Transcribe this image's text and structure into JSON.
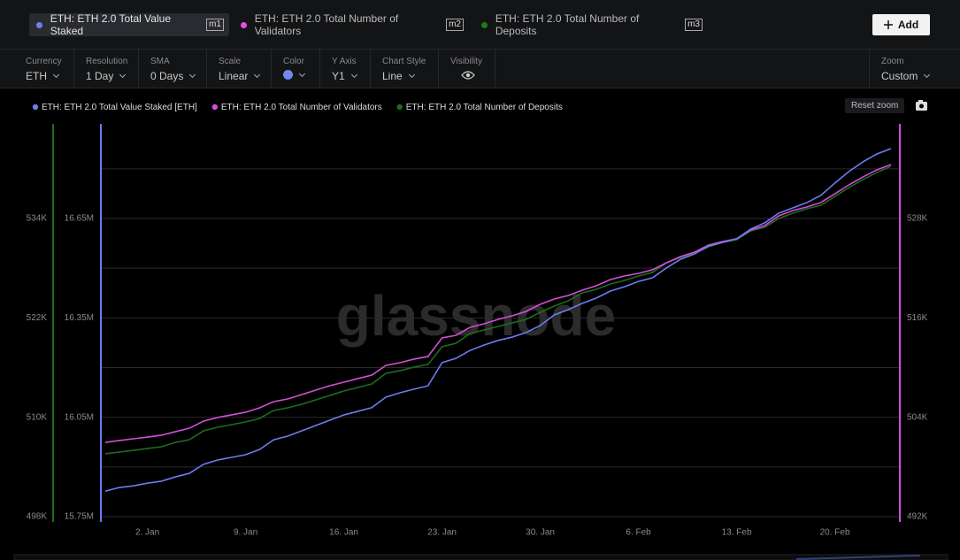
{
  "tabs": [
    {
      "name": "ETH: ETH 2.0 Total Value Staked",
      "badge": "m1"
    },
    {
      "name": "ETH: ETH 2.0 Total Number of Validators",
      "badge": "m2"
    },
    {
      "name": "ETH: ETH 2.0 Total Number of Deposits",
      "badge": "m3"
    }
  ],
  "add_button": "Add",
  "controls": {
    "currency": {
      "label": "Currency",
      "value": "ETH"
    },
    "resolution": {
      "label": "Resolution",
      "value": "1 Day"
    },
    "sma": {
      "label": "SMA",
      "value": "0 Days"
    },
    "scale": {
      "label": "Scale",
      "value": "Linear"
    },
    "color": {
      "label": "Color"
    },
    "y_axis": {
      "label": "Y Axis",
      "value": "Y1"
    },
    "chart_style": {
      "label": "Chart Style",
      "value": "Line"
    },
    "visibility": {
      "label": "Visibility"
    },
    "zoom": {
      "label": "Zoom",
      "value": "Custom"
    }
  },
  "reset_zoom": "Reset zoom",
  "watermark": "glassnode",
  "chart_data": {
    "type": "line",
    "categories": [
      null,
      null,
      null,
      "2. Jan",
      null,
      null,
      null,
      null,
      null,
      null,
      "9. Jan",
      null,
      null,
      null,
      null,
      null,
      null,
      "16. Jan",
      null,
      null,
      null,
      null,
      null,
      null,
      "23. Jan",
      null,
      null,
      null,
      null,
      null,
      null,
      "30. Jan",
      null,
      null,
      null,
      null,
      null,
      null,
      "6. Feb",
      null,
      null,
      null,
      null,
      null,
      null,
      "13. Feb",
      null,
      null,
      null,
      null,
      null,
      null,
      "20. Feb",
      null,
      null,
      null,
      null
    ],
    "ylim": [
      15734000,
      16935800
    ],
    "yticks": [
      {
        "value": 15750000,
        "label": "15.75M"
      },
      {
        "value": 16050000,
        "label": "16.05M"
      },
      {
        "value": 16350000,
        "label": "16.35M"
      },
      {
        "value": 16650000,
        "label": "16.65M"
      }
    ],
    "y_minor_ticks": [
      15900000,
      16200000,
      16500000,
      16800000
    ],
    "y2lim": [
      491359,
      539432
    ],
    "y2ticks": [
      {
        "value": 492000,
        "label": "492K"
      },
      {
        "value": 504000,
        "label": "504K"
      },
      {
        "value": 516000,
        "label": "516K"
      },
      {
        "value": 528000,
        "label": "528K"
      }
    ],
    "y3lim": [
      497359,
      545432
    ],
    "y3ticks": [
      {
        "value": 498000,
        "label": "498K"
      },
      {
        "value": 510000,
        "label": "510K"
      },
      {
        "value": 522000,
        "label": "522K"
      },
      {
        "value": 534000,
        "label": "534K"
      }
    ],
    "grid": true,
    "series": [
      {
        "name": "ETH: ETH 2.0 Total Value Staked [ETH]",
        "color": "#6b7cf0",
        "axis": "y",
        "values": [
          15827000,
          15838000,
          15843000,
          15851000,
          15857000,
          15870000,
          15881000,
          15908000,
          15921000,
          15929000,
          15937000,
          15953000,
          15982000,
          15993000,
          16009000,
          16025000,
          16041000,
          16057000,
          16068000,
          16079000,
          16111000,
          16124000,
          16135000,
          16145000,
          16215000,
          16228000,
          16252000,
          16268000,
          16282000,
          16292000,
          16306000,
          16327000,
          16359000,
          16375000,
          16394000,
          16410000,
          16431000,
          16444000,
          16460000,
          16471000,
          16501000,
          16527000,
          16543000,
          16567000,
          16578000,
          16589000,
          16618000,
          16637000,
          16666000,
          16682000,
          16698000,
          16720000,
          16757000,
          16792000,
          16821000,
          16845000,
          16861000
        ]
      },
      {
        "name": "ETH: ETH 2.0 Total Number of Validators",
        "color": "#d24fd8",
        "axis": "y2",
        "values": [
          500970,
          501190,
          501400,
          501610,
          501830,
          502260,
          502680,
          503540,
          503970,
          504290,
          504610,
          505140,
          505890,
          506210,
          506740,
          507280,
          507810,
          508240,
          508670,
          509090,
          510270,
          510590,
          511020,
          511340,
          513580,
          513900,
          514860,
          515290,
          515820,
          516250,
          516790,
          517640,
          518280,
          518710,
          519350,
          519880,
          520630,
          521060,
          521380,
          521810,
          522660,
          523410,
          523940,
          524800,
          525220,
          525550,
          526610,
          527150,
          528320,
          528960,
          529390,
          529930,
          530990,
          532060,
          533020,
          533880,
          534520
        ]
      },
      {
        "name": "ETH: ETH 2.0 Total Number of Deposits",
        "color": "#1f6a1f",
        "axis": "y3",
        "values": [
          505590,
          505800,
          506010,
          506230,
          506440,
          506970,
          507290,
          508360,
          508790,
          509110,
          509430,
          509860,
          510820,
          511140,
          511570,
          512100,
          512640,
          513170,
          513600,
          514020,
          515310,
          515630,
          516050,
          516380,
          518510,
          518940,
          520110,
          520540,
          520970,
          521400,
          521820,
          522680,
          523430,
          524070,
          525030,
          525460,
          526100,
          526520,
          527060,
          527490,
          528660,
          529300,
          529840,
          530580,
          531120,
          531440,
          532510,
          532930,
          534000,
          534640,
          535180,
          535600,
          536670,
          537740,
          538700,
          539560,
          540310
        ]
      }
    ]
  }
}
